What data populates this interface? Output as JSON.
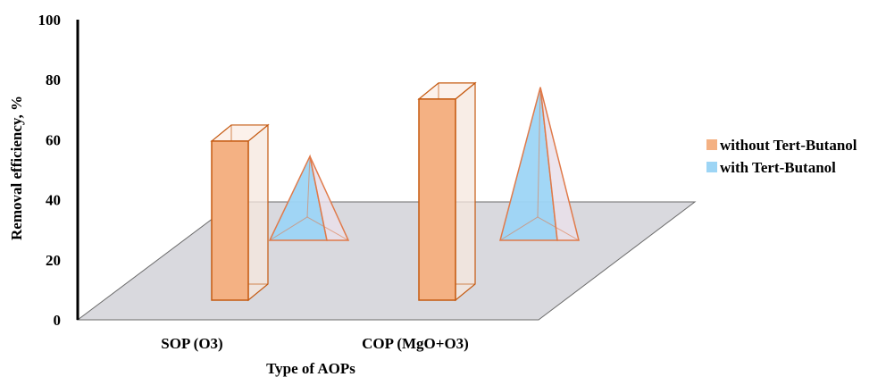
{
  "chart_data": {
    "type": "bar",
    "style": "3d",
    "title": "",
    "xlabel": "Type of AOPs",
    "ylabel": "Removal efficiency, %",
    "ylim": [
      0,
      100
    ],
    "yticks": [
      "0",
      "20",
      "40",
      "60",
      "80",
      "100"
    ],
    "categories": [
      "SOP (O3)",
      "COP (MgO+O3)"
    ],
    "series": [
      {
        "name": "without Tert-Butanol",
        "shape": "column",
        "color": "#F4B183",
        "edge": "#C55A11",
        "values": [
          53,
          67
        ]
      },
      {
        "name": "with Tert-Butanol",
        "shape": "pyramid",
        "color": "#9DD5F5",
        "edge": "#E07A4A",
        "values": [
          28,
          51
        ]
      }
    ],
    "legend_position": "right",
    "grid": false,
    "floor_color": "#D9D9DE"
  }
}
